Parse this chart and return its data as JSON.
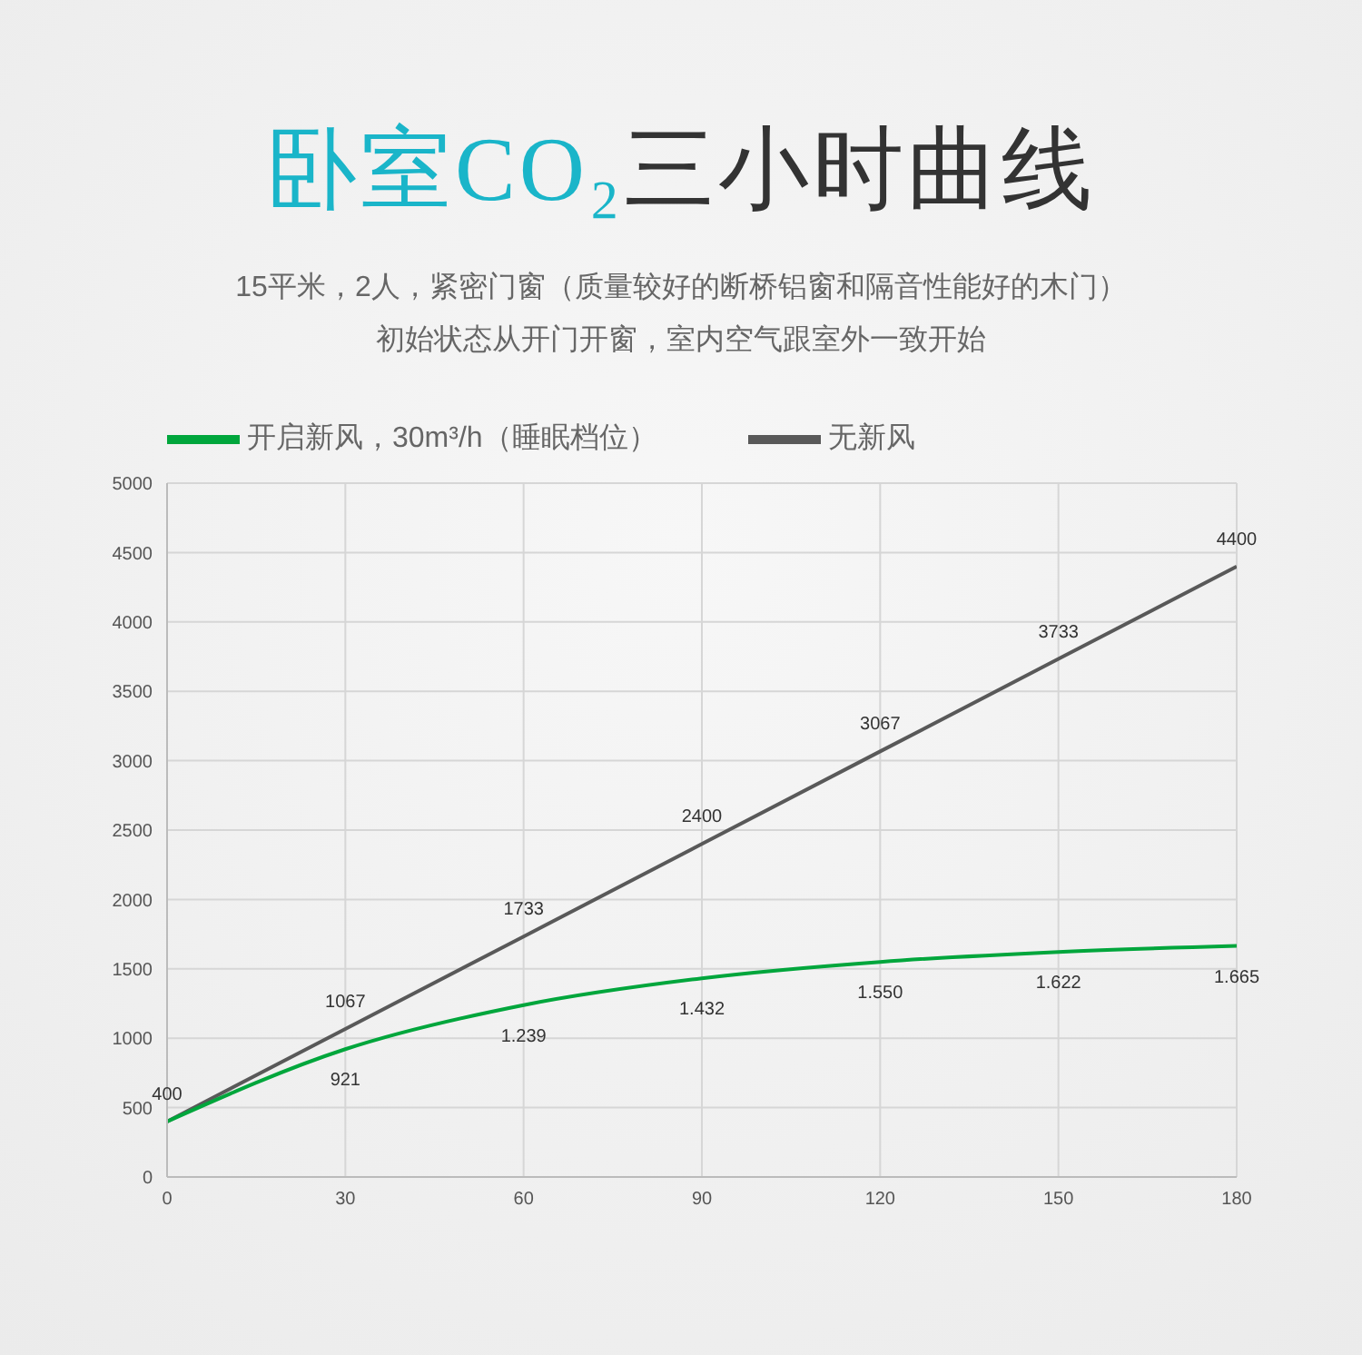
{
  "chart_data": {
    "type": "line",
    "title": "卧室CO₂三小时曲线",
    "subtitle": "15平米，2人，紧密门窗（质量较好的断桥铝窗和隔音性能好的木门）初始状态从开门开窗，室内空气跟室外一致开始",
    "x": [
      0,
      30,
      60,
      90,
      120,
      150,
      180
    ],
    "xlim": [
      0,
      180
    ],
    "xticks": [
      0,
      30,
      60,
      90,
      120,
      150,
      180
    ],
    "ylim": [
      0,
      5000
    ],
    "yticks": [
      0,
      500,
      1000,
      1500,
      2000,
      2500,
      3000,
      3500,
      4000,
      4500,
      5000
    ],
    "series": [
      {
        "name": "无新风",
        "color": "#595959",
        "values": [
          400,
          1067,
          1733,
          2400,
          3067,
          3733,
          4400
        ],
        "value_labels": [
          "400",
          "1067",
          "1733",
          "2400",
          "3067",
          "3733",
          "4400"
        ]
      },
      {
        "name": "开启新风，30m³/h（睡眠档位）",
        "color": "#00a63c",
        "values": [
          400,
          921,
          1239,
          1432,
          1550,
          1622,
          1665
        ],
        "value_labels": [
          null,
          "921",
          "1.239",
          "1.432",
          "1.550",
          "1.622",
          "1.665"
        ]
      }
    ],
    "grid": true,
    "legend": "top",
    "marker": "none",
    "line_style": "solid"
  }
}
